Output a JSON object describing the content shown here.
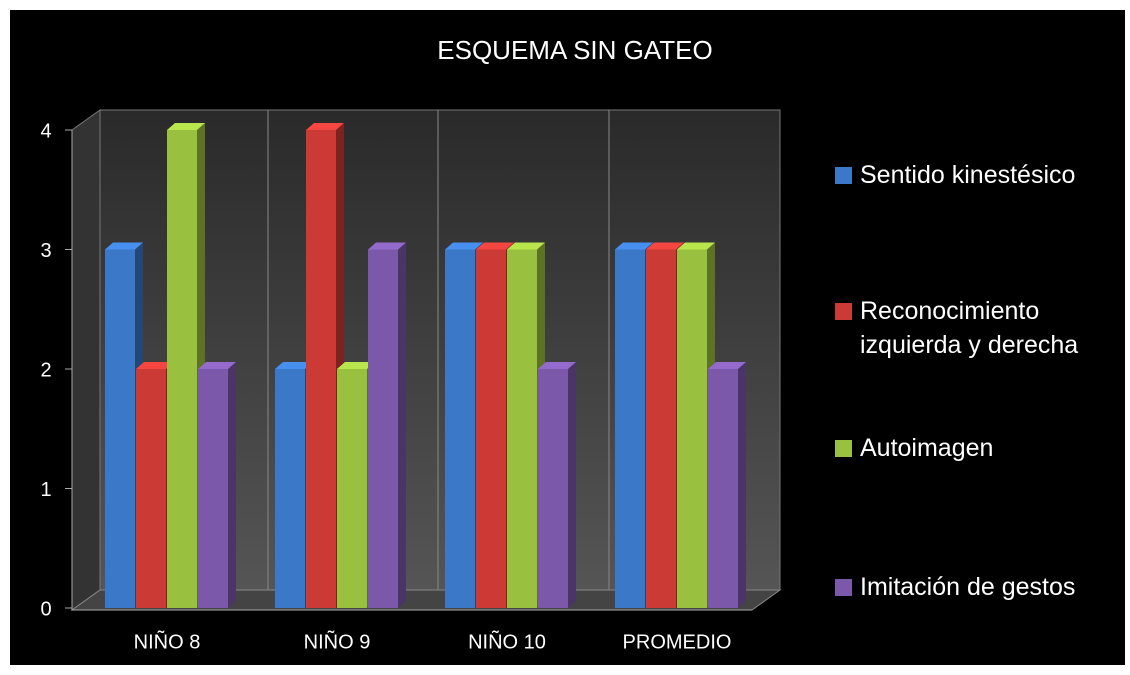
{
  "chart_data": {
    "type": "bar3d",
    "title": "ESQUEMA SIN GATEO",
    "categories": [
      "NIÑO 8",
      "NIÑO 9",
      "NIÑO 10",
      "PROMEDIO"
    ],
    "series": [
      {
        "name": "Sentido kinestésico",
        "color": "#3b78c8",
        "values": [
          3,
          2,
          3,
          3
        ]
      },
      {
        "name": "Reconocimiento izquierda y derecha",
        "color": "#cc3a36",
        "values": [
          2,
          4,
          3,
          3
        ]
      },
      {
        "name": "Autoimagen",
        "color": "#9ac040",
        "values": [
          4,
          2,
          3,
          3
        ]
      },
      {
        "name": "Imitación de gestos",
        "color": "#7b58aa",
        "values": [
          2,
          3,
          2,
          2
        ]
      }
    ],
    "ylim": [
      0,
      4
    ],
    "yticks": [
      0,
      1,
      2,
      3,
      4
    ],
    "legend": "right"
  }
}
